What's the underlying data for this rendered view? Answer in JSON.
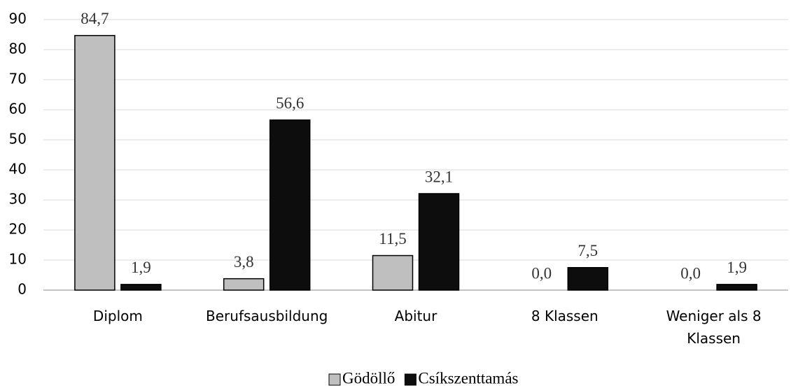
{
  "chart_data": {
    "type": "bar",
    "categories": [
      "Diplom",
      "Berufsausbildung",
      "Abitur",
      "8 Klassen",
      "Weniger als 8 Klassen"
    ],
    "series": [
      {
        "name": "Gödöllő",
        "color": "#bfbfbf",
        "values": [
          84.7,
          3.8,
          11.5,
          0.0,
          0.0
        ],
        "value_labels": [
          "84,7",
          "3,8",
          "11,5",
          "0,0",
          "0,0"
        ]
      },
      {
        "name": "Csíkszenttamás",
        "color": "#0d0d0d",
        "values": [
          1.9,
          56.6,
          32.1,
          7.5,
          1.9
        ],
        "value_labels": [
          "1,9",
          "56,6",
          "32,1",
          "7,5",
          "1,9"
        ]
      }
    ],
    "ylim": [
      0,
      90
    ],
    "yticks": [
      0,
      10,
      20,
      30,
      40,
      50,
      60,
      70,
      80,
      90
    ],
    "grid": true,
    "legend": "bottom"
  }
}
